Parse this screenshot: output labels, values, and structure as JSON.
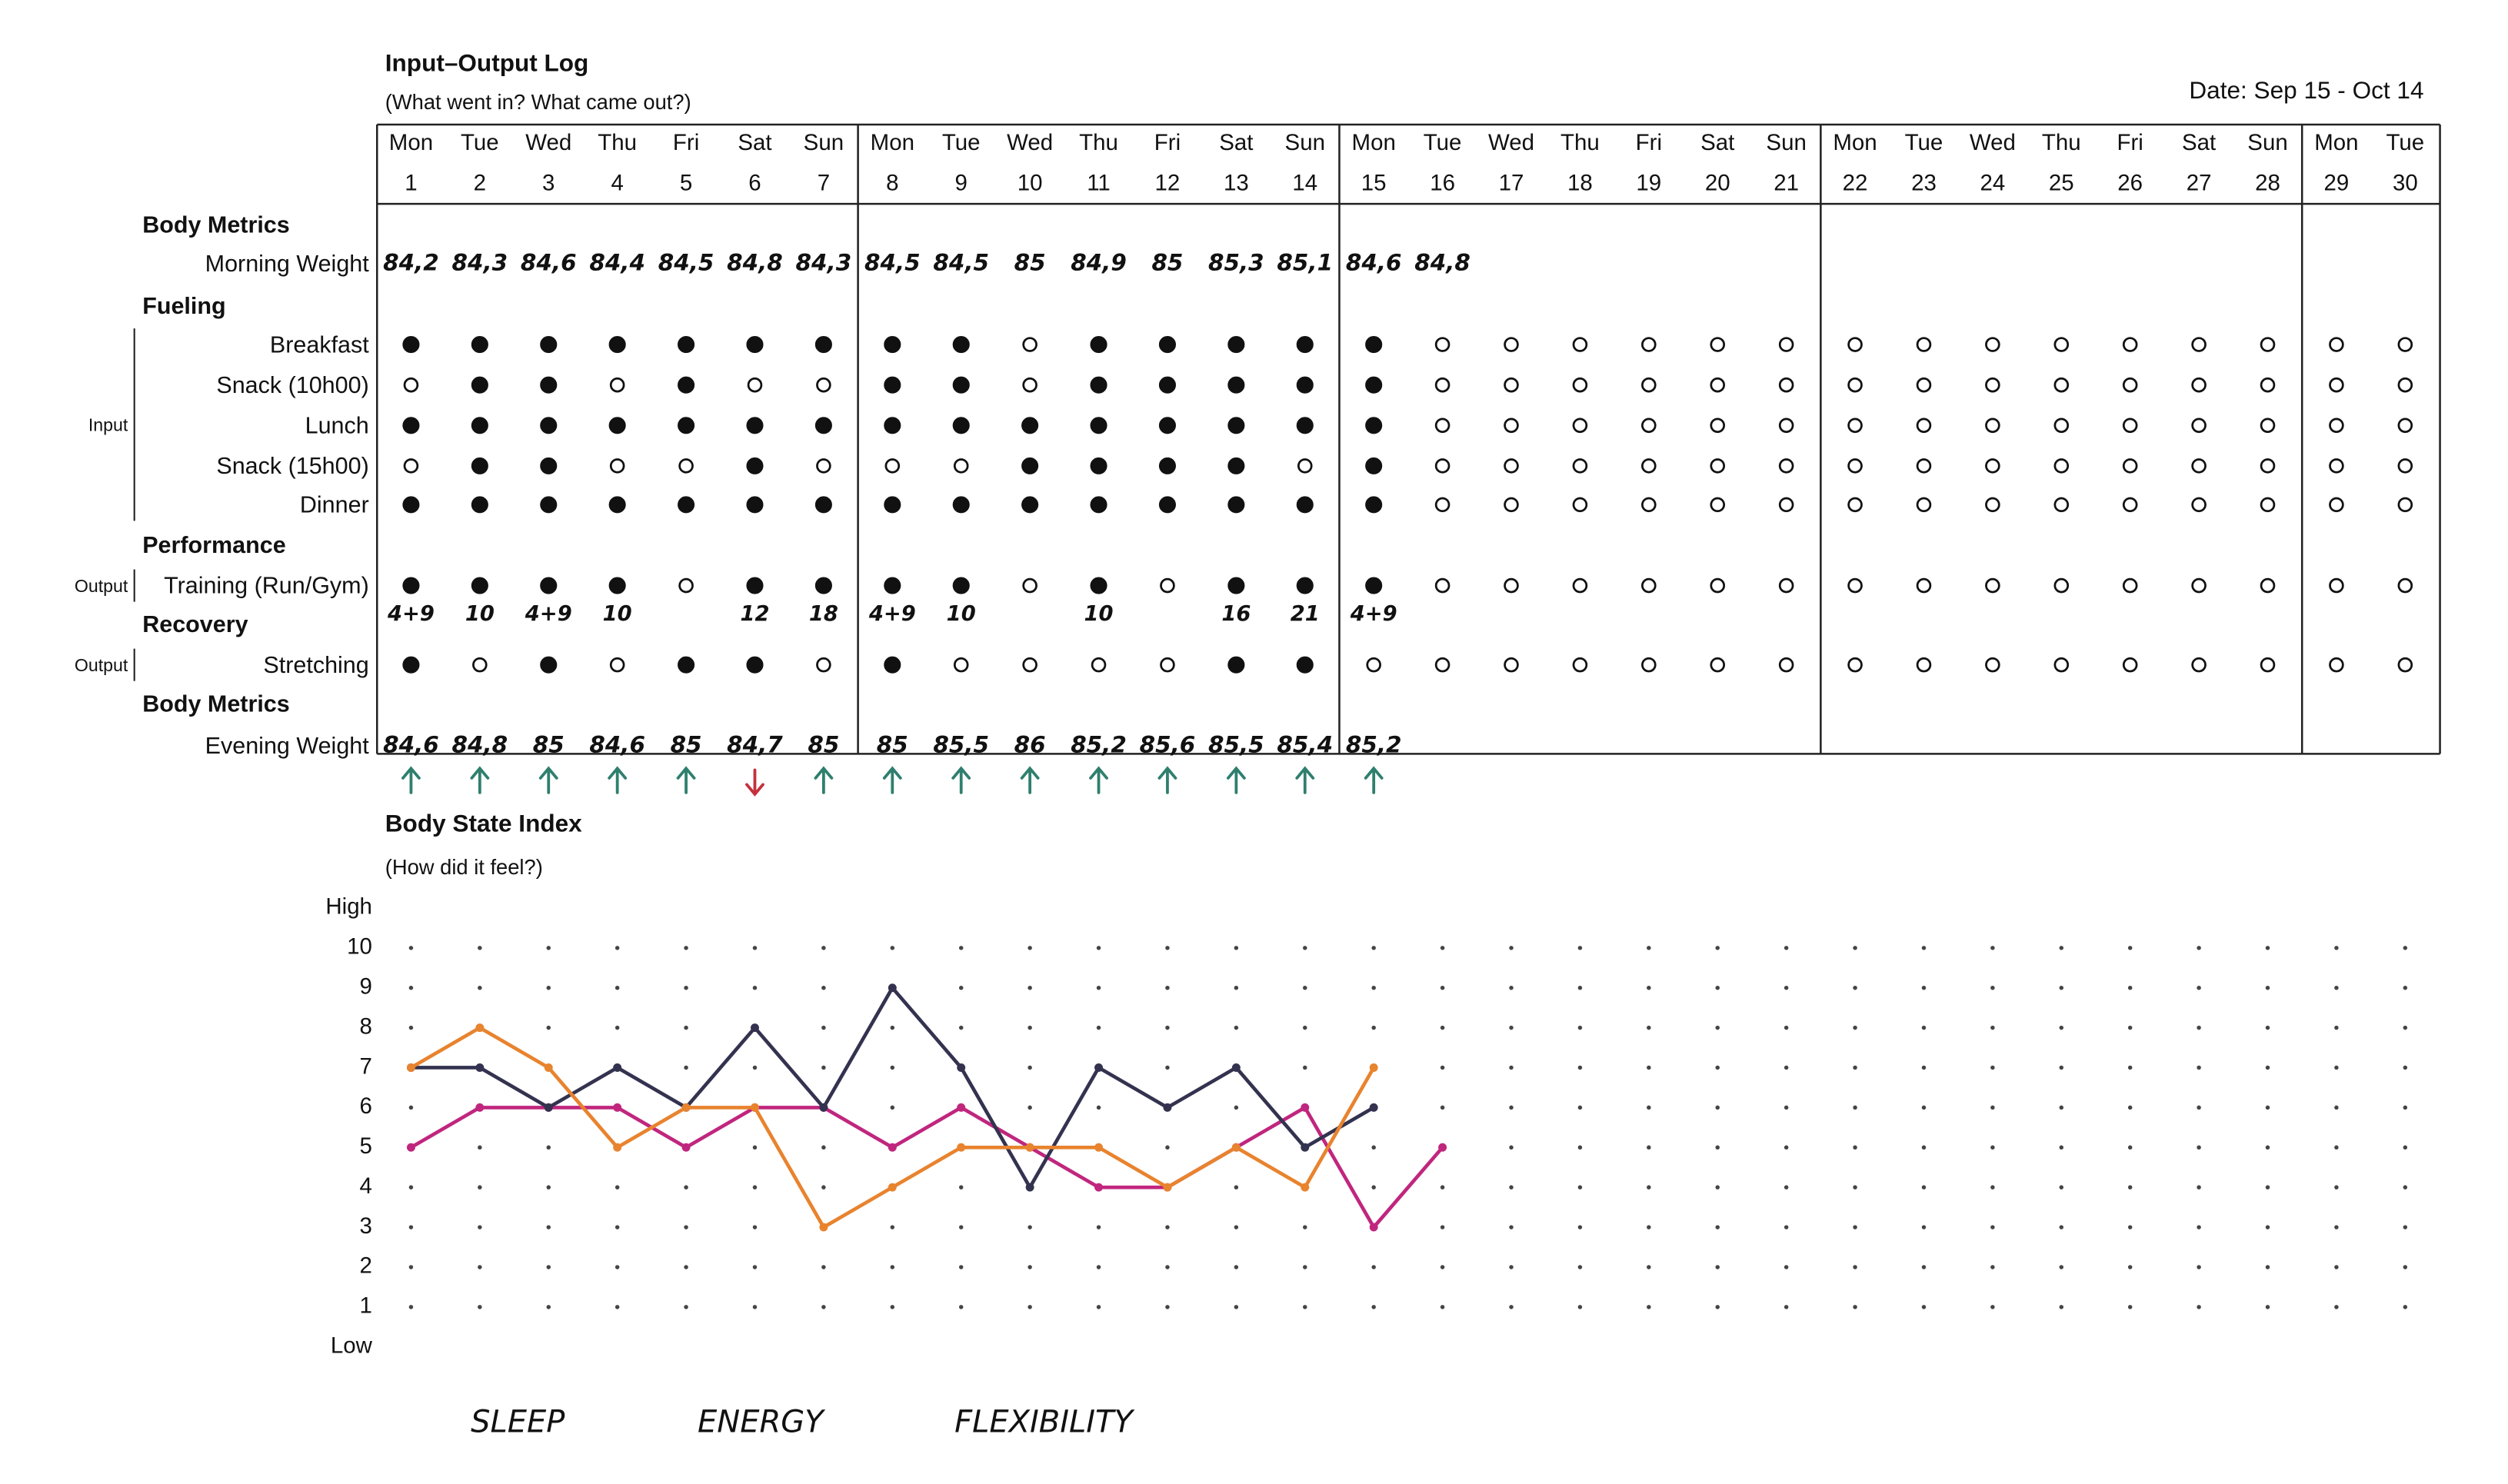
{
  "log": {
    "title": "Input–Output Log",
    "subtitle": "(What went in? What came out?)",
    "date": "Date: Sep 15 - Oct 14",
    "days": [
      {
        "name": "Mon",
        "num": "1"
      },
      {
        "name": "Tue",
        "num": "2"
      },
      {
        "name": "Wed",
        "num": "3"
      },
      {
        "name": "Thu",
        "num": "4"
      },
      {
        "name": "Fri",
        "num": "5"
      },
      {
        "name": "Sat",
        "num": "6"
      },
      {
        "name": "Sun",
        "num": "7"
      },
      {
        "name": "Mon",
        "num": "8"
      },
      {
        "name": "Tue",
        "num": "9"
      },
      {
        "name": "Wed",
        "num": "10"
      },
      {
        "name": "Thu",
        "num": "11"
      },
      {
        "name": "Fri",
        "num": "12"
      },
      {
        "name": "Sat",
        "num": "13"
      },
      {
        "name": "Sun",
        "num": "14"
      },
      {
        "name": "Mon",
        "num": "15"
      },
      {
        "name": "Tue",
        "num": "16"
      },
      {
        "name": "Wed",
        "num": "17"
      },
      {
        "name": "Thu",
        "num": "18"
      },
      {
        "name": "Fri",
        "num": "19"
      },
      {
        "name": "Sat",
        "num": "20"
      },
      {
        "name": "Sun",
        "num": "21"
      },
      {
        "name": "Mon",
        "num": "22"
      },
      {
        "name": "Tue",
        "num": "23"
      },
      {
        "name": "Wed",
        "num": "24"
      },
      {
        "name": "Thu",
        "num": "25"
      },
      {
        "name": "Fri",
        "num": "26"
      },
      {
        "name": "Sat",
        "num": "27"
      },
      {
        "name": "Sun",
        "num": "28"
      },
      {
        "name": "Mon",
        "num": "29"
      },
      {
        "name": "Tue",
        "num": "30"
      }
    ],
    "sections": [
      {
        "title": "Body Metrics",
        "rows": [
          {
            "label": "Morning Weight",
            "texts": [
              "84,2",
              "84,3",
              "84,6",
              "84,4",
              "84,5",
              "84,8",
              "84,3",
              "84,5",
              "84,5",
              "85",
              "84,9",
              "85",
              "85,3",
              "85,1",
              "84,6",
              "84,8"
            ]
          }
        ]
      },
      {
        "title": "Fueling",
        "group": "Input",
        "rows": [
          {
            "label": "Breakfast",
            "dots": [
              1,
              1,
              1,
              1,
              1,
              1,
              1,
              1,
              1,
              0,
              1,
              1,
              1,
              1,
              1,
              0,
              0,
              0,
              0,
              0,
              0,
              0,
              0,
              0,
              0,
              0,
              0,
              0,
              0,
              0
            ]
          },
          {
            "label": "Snack (10h00)",
            "dots": [
              0,
              1,
              1,
              0,
              1,
              0,
              0,
              1,
              1,
              0,
              1,
              1,
              1,
              1,
              1,
              0,
              0,
              0,
              0,
              0,
              0,
              0,
              0,
              0,
              0,
              0,
              0,
              0,
              0,
              0
            ]
          },
          {
            "label": "Lunch",
            "dots": [
              1,
              1,
              1,
              1,
              1,
              1,
              1,
              1,
              1,
              1,
              1,
              1,
              1,
              1,
              1,
              0,
              0,
              0,
              0,
              0,
              0,
              0,
              0,
              0,
              0,
              0,
              0,
              0,
              0,
              0
            ]
          },
          {
            "label": "Snack (15h00)",
            "dots": [
              0,
              1,
              1,
              0,
              0,
              1,
              0,
              0,
              0,
              1,
              1,
              1,
              1,
              0,
              1,
              0,
              0,
              0,
              0,
              0,
              0,
              0,
              0,
              0,
              0,
              0,
              0,
              0,
              0,
              0
            ]
          },
          {
            "label": "Dinner",
            "dots": [
              1,
              1,
              1,
              1,
              1,
              1,
              1,
              1,
              1,
              1,
              1,
              1,
              1,
              1,
              1,
              0,
              0,
              0,
              0,
              0,
              0,
              0,
              0,
              0,
              0,
              0,
              0,
              0,
              0,
              0
            ]
          }
        ]
      },
      {
        "title": "Performance",
        "group": "Output",
        "rows": [
          {
            "label": "Training (Run/Gym)",
            "dots": [
              1,
              1,
              1,
              1,
              0,
              1,
              1,
              1,
              1,
              0,
              1,
              0,
              1,
              1,
              1,
              0,
              0,
              0,
              0,
              0,
              0,
              0,
              0,
              0,
              0,
              0,
              0,
              0,
              0,
              0
            ],
            "notes": [
              "4+9",
              "10",
              "4+9",
              "10",
              null,
              "12",
              "18",
              "4+9",
              "10",
              null,
              "10",
              null,
              "16",
              "21",
              "4+9"
            ]
          }
        ]
      },
      {
        "title": "Recovery",
        "group": "Output",
        "rows": [
          {
            "label": "Stretching",
            "dots": [
              1,
              0,
              1,
              0,
              1,
              1,
              0,
              1,
              0,
              0,
              0,
              0,
              1,
              1,
              0,
              0,
              0,
              0,
              0,
              0,
              0,
              0,
              0,
              0,
              0,
              0,
              0,
              0,
              0,
              0
            ]
          }
        ]
      },
      {
        "title": "Body Metrics",
        "rows": [
          {
            "label": "Evening Weight",
            "texts": [
              "84,6",
              "84,8",
              "85",
              "84,6",
              "85",
              "84,7",
              "85",
              "85",
              "85,5",
              "86",
              "85,2",
              "85,6",
              "85,5",
              "85,4",
              "85,2"
            ],
            "trend": [
              "up",
              "up",
              "up",
              "up",
              "up",
              "down",
              "up",
              "up",
              "up",
              "up",
              "up",
              "up",
              "up",
              "up",
              "up"
            ]
          }
        ]
      }
    ],
    "trend_colors": {
      "up": "#2f7f6e",
      "down": "#c4313e"
    }
  },
  "chart_data": {
    "type": "line",
    "title": "Body State Index",
    "subtitle": "(How did it feel?)",
    "y_high_label": "High",
    "y_low_label": "Low",
    "ylim": [
      0,
      11
    ],
    "yticks": [
      1,
      2,
      3,
      4,
      5,
      6,
      7,
      8,
      9,
      10
    ],
    "grid": true,
    "series": [
      {
        "name": "SLEEP",
        "color": "#c0267e",
        "values": [
          5,
          6,
          6,
          6,
          5,
          6,
          6,
          5,
          6,
          5,
          4,
          4,
          5,
          6,
          3,
          5,
          null,
          null,
          null,
          null,
          null,
          null,
          null,
          null,
          null,
          null,
          null,
          null,
          null,
          null
        ]
      },
      {
        "name": "ENERGY",
        "color": "#33324f",
        "values": [
          7,
          7,
          6,
          7,
          6,
          8,
          6,
          9,
          7,
          4,
          7,
          6,
          7,
          5,
          6,
          null,
          null,
          null,
          null,
          null,
          null,
          null,
          null,
          null,
          null,
          null,
          null,
          null,
          null,
          null
        ]
      },
      {
        "name": "FLEXIBILITY",
        "color": "#e8832e",
        "values": [
          7,
          8,
          7,
          5,
          6,
          6,
          3,
          4,
          5,
          5,
          5,
          4,
          5,
          4,
          7,
          null,
          null,
          null,
          null,
          null,
          null,
          null,
          null,
          null,
          null,
          null,
          null,
          null,
          null,
          null
        ]
      }
    ]
  }
}
